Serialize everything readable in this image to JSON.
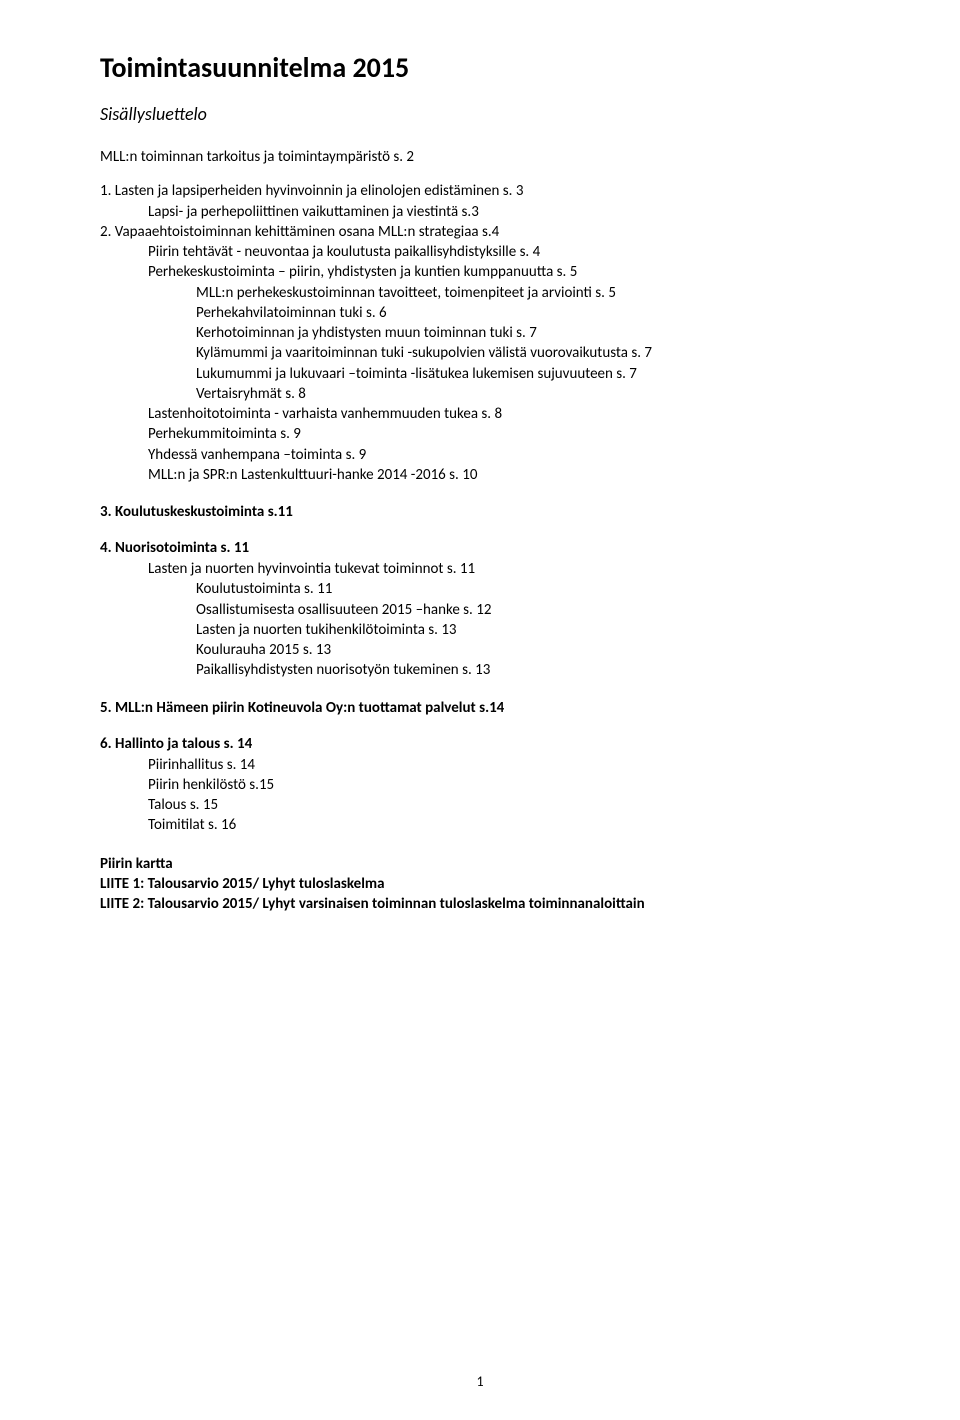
{
  "title": "Toimintasuunnitelma 2015",
  "subtitle": "Sisällysluettelo",
  "block1": {
    "l0": "MLL:n toiminnan tarkoitus ja toimintaympäristö s. 2"
  },
  "block2": {
    "l0": "1. Lasten ja lapsiperheiden hyvinvoinnin ja elinolojen edistäminen s. 3",
    "l1": "Lapsi- ja perhepoliittinen vaikuttaminen ja viestintä s.3",
    "l2": "2. Vapaaehtoistoiminnan kehittäminen osana MLL:n strategiaa s.4",
    "l3": "Piirin tehtävät - neuvontaa ja koulutusta paikallisyhdistyksille s. 4",
    "l4": "Perhekeskustoiminta – piirin, yhdistysten ja kuntien kumppanuutta s. 5",
    "l5": "MLL:n perhekeskustoiminnan tavoitteet, toimenpiteet ja arviointi s. 5",
    "l6": "Perhekahvilatoiminnan tuki s. 6",
    "l7": "Kerhotoiminnan ja yhdistysten muun toiminnan tuki s. 7",
    "l8": "Kylämummi ja vaaritoiminnan tuki -sukupolvien välistä vuorovaikutusta s. 7",
    "l9": "Lukumummi ja lukuvaari –toiminta -lisätukea lukemisen sujuvuuteen s. 7",
    "l10": "Vertaisryhmät s. 8",
    "l11": "Lastenhoitotoiminta - varhaista vanhemmuuden tukea s. 8",
    "l12": "Perhekummitoiminta s. 9",
    "l13": "Yhdessä vanhempana –toiminta s. 9",
    "l14": "MLL:n ja SPR:n Lastenkulttuuri-hanke 2014 -2016 s. 10"
  },
  "sec3": {
    "header": "3. Koulutuskeskustoiminta s.11"
  },
  "sec4": {
    "header": "4. Nuorisotoiminta s. 11",
    "l0": "Lasten ja nuorten hyvinvointia tukevat toiminnot s. 11",
    "l1": "Koulutustoiminta s. 11",
    "l2": "Osallistumisesta osallisuuteen 2015 –hanke s. 12",
    "l3": "Lasten ja nuorten tukihenkilötoiminta s. 13",
    "l4": "Koulurauha 2015 s. 13",
    "l5": "Paikallisyhdistysten nuorisotyön tukeminen s. 13"
  },
  "sec5": {
    "header": "5. MLL:n Hämeen piirin Kotineuvola Oy:n tuottamat palvelut s.14"
  },
  "sec6": {
    "header": "6. Hallinto ja talous s. 14",
    "l0": "Piirinhallitus s. 14",
    "l1": "Piirin henkilöstö s.15",
    "l2": "Talous s. 15",
    "l3": "Toimitilat s. 16"
  },
  "appendix": {
    "l0": "Piirin kartta",
    "l1": "LIITE 1: Talousarvio 2015/ Lyhyt tuloslaskelma",
    "l2": "LIITE 2: Talousarvio 2015/ Lyhyt varsinaisen toiminnan tuloslaskelma toiminnanaloittain"
  },
  "pageNumber": "1"
}
